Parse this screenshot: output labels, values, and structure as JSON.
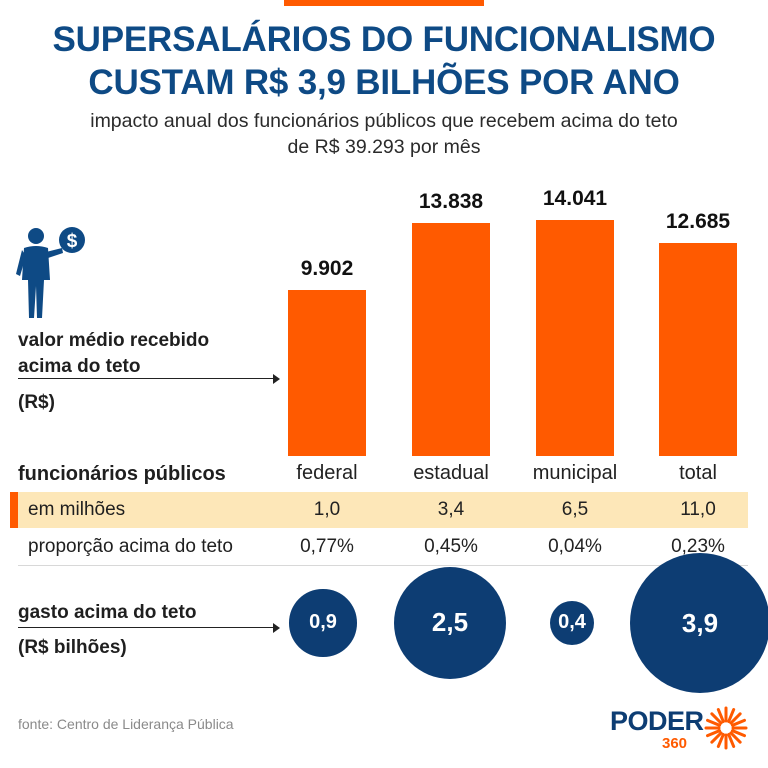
{
  "title_line1": "SUPERSALÁRIOS DO FUNCIONALISMO",
  "title_line2": "CUSTAM R$ 3,9 BILHÕES POR ANO",
  "subtitle_line1": "impacto anual dos funcionários públicos que recebem acima do teto",
  "subtitle_line2": "de R$ 39.293 por mês",
  "bar_label": {
    "line1": "valor médio recebido",
    "line2": "acima do teto",
    "unit": "(R$)"
  },
  "table": {
    "header": "funcionários públicos",
    "row1_label": "em milhões",
    "row2_label": "proporção acima do teto"
  },
  "spend_label": {
    "line1": "gasto acima do teto",
    "line2": "(R$ bilhões)"
  },
  "source": "fonte: Centro de Liderança Pública",
  "logo": {
    "word": "PODER",
    "number": "360"
  },
  "colors": {
    "title": "#0e4a85",
    "bar": "#ff5a00",
    "circle": "#0d3d73",
    "highlight_row": "#fde7b8"
  },
  "icons": [
    "person-holding-coin-icon",
    "dollar-sign-icon",
    "sunburst-logo-icon"
  ],
  "chart_data": {
    "type": "bar",
    "categories": [
      "federal",
      "estadual",
      "municipal",
      "total"
    ],
    "values": [
      9902,
      13838,
      14041,
      12685
    ],
    "value_labels": [
      "9.902",
      "13.838",
      "14.041",
      "12.685"
    ],
    "title": "SUPERSALÁRIOS DO FUNCIONALISMO CUSTAM R$ 3,9 BILHÕES POR ANO",
    "ylabel": "valor médio recebido acima do teto (R$)",
    "grid": false,
    "employees_millions": [
      "1,0",
      "3,4",
      "6,5",
      "11,0"
    ],
    "proportion_above_ceiling": [
      "0,77%",
      "0,45%",
      "0,04%",
      "0,23%"
    ],
    "spend_billions": [
      0.9,
      2.5,
      0.4,
      3.9
    ],
    "spend_labels": [
      "0,9",
      "2,5",
      "0,4",
      "3,9"
    ]
  }
}
